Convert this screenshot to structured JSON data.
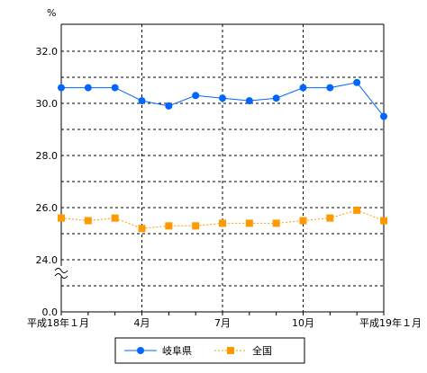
{
  "chart_data": {
    "type": "line",
    "unit_label": "%",
    "x": [
      "平成18年1月",
      "2月",
      "3月",
      "4月",
      "5月",
      "6月",
      "7月",
      "8月",
      "9月",
      "10月",
      "11月",
      "12月",
      "平成19年1月"
    ],
    "x_tick_labels": [
      "平成18年１月",
      "4月",
      "7月",
      "10月",
      "平成19年１月"
    ],
    "y_tick_labels": [
      "32.0",
      "30.0",
      "28.0",
      "26.0",
      "24.0",
      "0.0"
    ],
    "ylim": [
      0,
      32
    ],
    "axis_break": {
      "from": 0,
      "to": 23
    },
    "grid": true,
    "legend_position": "bottom",
    "series": [
      {
        "name": "岐阜県",
        "color": "#0066ff",
        "marker": "circle",
        "line": "solid",
        "values": [
          30.6,
          30.6,
          30.6,
          30.1,
          29.9,
          30.3,
          30.2,
          30.1,
          30.2,
          30.6,
          30.6,
          30.8,
          29.5
        ]
      },
      {
        "name": "全国",
        "color": "#ff9900",
        "marker": "square",
        "line": "dotted",
        "values": [
          25.6,
          25.5,
          25.6,
          25.2,
          25.3,
          25.3,
          25.4,
          25.4,
          25.4,
          25.5,
          25.6,
          25.9,
          25.5
        ]
      }
    ]
  }
}
